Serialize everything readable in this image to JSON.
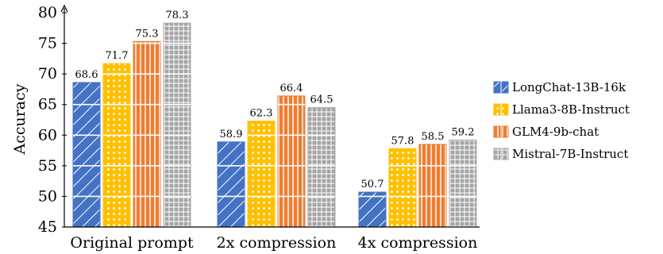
{
  "chart_data": {
    "type": "bar",
    "categories": [
      "Original prompt",
      "2x compression",
      "4x compression"
    ],
    "series": [
      {
        "name": "LongChat-13B-16k",
        "values": [
          68.6,
          58.9,
          50.7
        ],
        "color": "#4472c4",
        "pattern": "diagonal"
      },
      {
        "name": "Llama3-8B-Instruct",
        "values": [
          71.7,
          62.3,
          57.8
        ],
        "color": "#ffc000",
        "pattern": "dots"
      },
      {
        "name": "GLM4-9b-chat",
        "values": [
          75.3,
          66.4,
          58.5
        ],
        "color": "#ed7d31",
        "pattern": "vertical"
      },
      {
        "name": "Mistral-7B-Instruct",
        "values": [
          78.3,
          64.5,
          59.2
        ],
        "color": "#a5a5a5",
        "pattern": "grid"
      }
    ],
    "xlabel": "",
    "ylabel": "Accuracy",
    "ylim": [
      45,
      80
    ],
    "yticks": [
      45,
      50,
      55,
      60,
      65,
      70,
      75,
      80
    ],
    "data_labels": [
      [
        "68.6",
        "71.7",
        "75.3",
        "78.3"
      ],
      [
        "58.9",
        "62.3",
        "66.4",
        "64.5"
      ],
      [
        "50.7",
        "57.8",
        "58.5",
        "59.2"
      ]
    ],
    "grid": false,
    "legend": "right"
  }
}
